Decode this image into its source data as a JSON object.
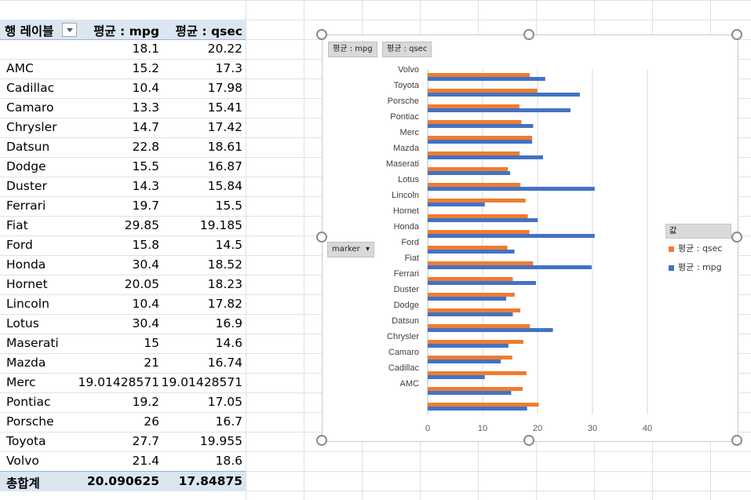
{
  "pivot": {
    "headers": {
      "row_label": "행 레이블",
      "mpg": "평균 : mpg",
      "qsec": "평균 : qsec"
    },
    "rows": [
      {
        "label": "",
        "mpg": "18.1",
        "qsec": "20.22"
      },
      {
        "label": "AMC",
        "mpg": "15.2",
        "qsec": "17.3"
      },
      {
        "label": "Cadillac",
        "mpg": "10.4",
        "qsec": "17.98"
      },
      {
        "label": "Camaro",
        "mpg": "13.3",
        "qsec": "15.41"
      },
      {
        "label": "Chrysler",
        "mpg": "14.7",
        "qsec": "17.42"
      },
      {
        "label": "Datsun",
        "mpg": "22.8",
        "qsec": "18.61"
      },
      {
        "label": "Dodge",
        "mpg": "15.5",
        "qsec": "16.87"
      },
      {
        "label": "Duster",
        "mpg": "14.3",
        "qsec": "15.84"
      },
      {
        "label": "Ferrari",
        "mpg": "19.7",
        "qsec": "15.5"
      },
      {
        "label": "Fiat",
        "mpg": "29.85",
        "qsec": "19.185"
      },
      {
        "label": "Ford",
        "mpg": "15.8",
        "qsec": "14.5"
      },
      {
        "label": "Honda",
        "mpg": "30.4",
        "qsec": "18.52"
      },
      {
        "label": "Hornet",
        "mpg": "20.05",
        "qsec": "18.23"
      },
      {
        "label": "Lincoln",
        "mpg": "10.4",
        "qsec": "17.82"
      },
      {
        "label": "Lotus",
        "mpg": "30.4",
        "qsec": "16.9"
      },
      {
        "label": "Maserati",
        "mpg": "15",
        "qsec": "14.6"
      },
      {
        "label": "Mazda",
        "mpg": "21",
        "qsec": "16.74"
      },
      {
        "label": "Merc",
        "mpg": "19.01428571",
        "qsec": "19.01428571"
      },
      {
        "label": "Pontiac",
        "mpg": "19.2",
        "qsec": "17.05"
      },
      {
        "label": "Porsche",
        "mpg": "26",
        "qsec": "16.7"
      },
      {
        "label": "Toyota",
        "mpg": "27.7",
        "qsec": "19.955"
      },
      {
        "label": "Volvo",
        "mpg": "21.4",
        "qsec": "18.6"
      }
    ],
    "total": {
      "label": "총합계",
      "mpg": "20.090625",
      "qsec": "17.84875"
    }
  },
  "chart_buttons": {
    "mpg": "평균 : mpg",
    "qsec": "평균 : qsec",
    "axis_field": "marker"
  },
  "legend": {
    "title": "값",
    "items": [
      {
        "label": "평균 : qsec",
        "color": "#ed7d31"
      },
      {
        "label": "평균 : mpg",
        "color": "#4472c4"
      }
    ]
  },
  "chart_data": {
    "type": "bar",
    "orientation": "horizontal",
    "categories": [
      "",
      "AMC",
      "Cadillac",
      "Camaro",
      "Chrysler",
      "Datsun",
      "Dodge",
      "Duster",
      "Ferrari",
      "Fiat",
      "Ford",
      "Honda",
      "Hornet",
      "Lincoln",
      "Lotus",
      "Maserati",
      "Mazda",
      "Merc",
      "Pontiac",
      "Porsche",
      "Toyota",
      "Volvo"
    ],
    "series": [
      {
        "name": "평균 : mpg",
        "color": "#4472c4",
        "values": [
          18.1,
          15.2,
          10.4,
          13.3,
          14.7,
          22.8,
          15.5,
          14.3,
          19.7,
          29.85,
          15.8,
          30.4,
          20.05,
          10.4,
          30.4,
          15,
          21,
          19.01428571,
          19.2,
          26,
          27.7,
          21.4
        ]
      },
      {
        "name": "평균 : qsec",
        "color": "#ed7d31",
        "values": [
          20.22,
          17.3,
          17.98,
          15.41,
          17.42,
          18.61,
          16.87,
          15.84,
          15.5,
          19.185,
          14.5,
          18.52,
          18.23,
          17.82,
          16.9,
          14.6,
          16.74,
          19.01428571,
          17.05,
          16.7,
          19.955,
          18.6
        ]
      }
    ],
    "xlim": [
      0,
      40
    ],
    "xticks": [
      "0",
      "10",
      "20",
      "30",
      "40"
    ],
    "grid": true,
    "legend_position": "right"
  }
}
